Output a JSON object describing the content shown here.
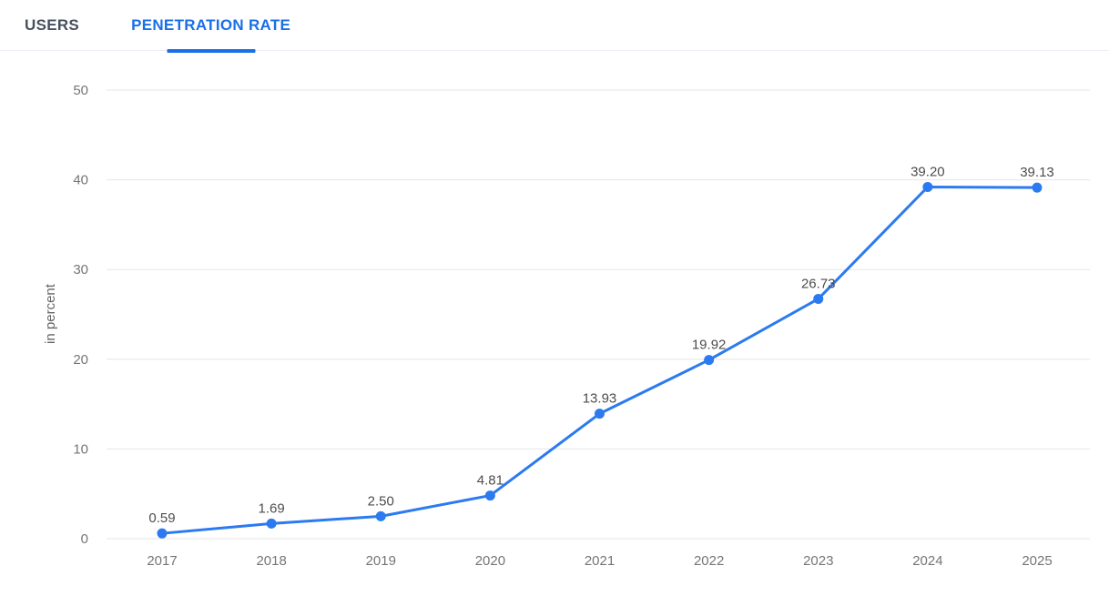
{
  "tabs": [
    {
      "label": "USERS",
      "active": false
    },
    {
      "label": "PENETRATION RATE",
      "active": true
    }
  ],
  "colors": {
    "accent_blue": "#1a6fe8",
    "line_blue": "#2b7af0",
    "inactive_tab": "#47505f",
    "gridline": "#e6e6e6",
    "tick_label": "#757575",
    "data_label": "#4d4d4d",
    "background": "#ffffff"
  },
  "chart_data": {
    "type": "line",
    "title": "",
    "xlabel": "",
    "ylabel": "in percent",
    "x": [
      "2017",
      "2018",
      "2019",
      "2020",
      "2021",
      "2022",
      "2023",
      "2024",
      "2025"
    ],
    "series": [
      {
        "name": "Penetration Rate",
        "values": [
          0.59,
          1.69,
          2.5,
          4.81,
          13.93,
          19.92,
          26.73,
          39.2,
          39.13
        ]
      }
    ],
    "data_labels": [
      "0.59",
      "1.69",
      "2.50",
      "4.81",
      "13.93",
      "19.92",
      "26.73",
      "39.20",
      "39.13"
    ],
    "ylim": [
      0,
      50
    ],
    "yticks": [
      0,
      10,
      20,
      30,
      40,
      50
    ],
    "grid": true,
    "legend": "none"
  }
}
